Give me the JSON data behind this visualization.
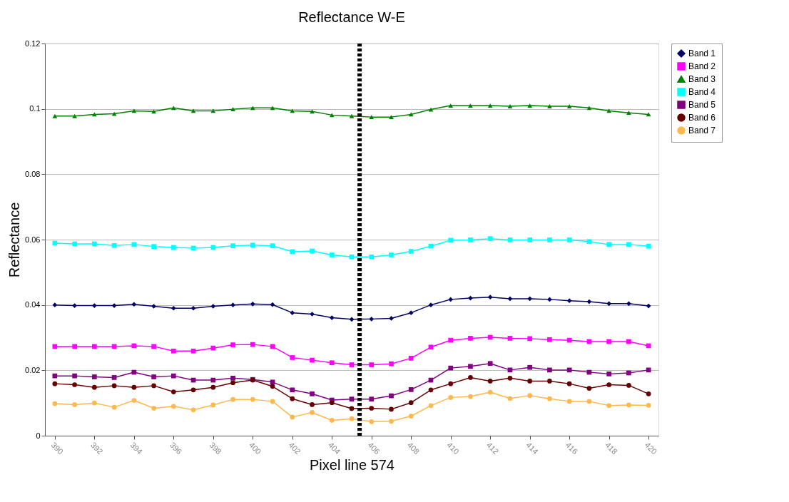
{
  "chart_data": {
    "type": "line",
    "title": "Reflectance W-E",
    "xlabel": "Pixel line 574",
    "ylabel": "Reflectance",
    "x": [
      390,
      391,
      392,
      393,
      394,
      395,
      396,
      397,
      398,
      399,
      400,
      401,
      402,
      403,
      404,
      405,
      406,
      407,
      408,
      409,
      410,
      411,
      412,
      413,
      414,
      415,
      416,
      417,
      418,
      419,
      420
    ],
    "xlim": [
      389.5,
      420.5
    ],
    "xticks": [
      390,
      392,
      394,
      396,
      398,
      400,
      402,
      404,
      406,
      408,
      410,
      412,
      414,
      416,
      418,
      420
    ],
    "ylim": [
      0,
      0.12
    ],
    "yticks": [
      0,
      0.02,
      0.04,
      0.06,
      0.08,
      0.1,
      0.12
    ],
    "grid": "y",
    "legend": "right",
    "series": [
      {
        "name": "Band 1",
        "color": "#000066",
        "marker": "diamond",
        "values": [
          0.04,
          0.0398,
          0.0398,
          0.0398,
          0.0402,
          0.0396,
          0.039,
          0.039,
          0.0396,
          0.04,
          0.0403,
          0.0401,
          0.0376,
          0.0372,
          0.0361,
          0.0356,
          0.0357,
          0.0359,
          0.0376,
          0.04,
          0.0417,
          0.0421,
          0.0424,
          0.0419,
          0.0419,
          0.0417,
          0.0413,
          0.041,
          0.0404,
          0.0404,
          0.0397
        ]
      },
      {
        "name": "Band 2",
        "color": "#ff00ff",
        "marker": "square",
        "values": [
          0.0273,
          0.0273,
          0.0273,
          0.0273,
          0.0275,
          0.0273,
          0.0259,
          0.0259,
          0.0268,
          0.0278,
          0.0279,
          0.0273,
          0.0239,
          0.0231,
          0.0223,
          0.0217,
          0.0217,
          0.022,
          0.0237,
          0.0271,
          0.0292,
          0.0298,
          0.0301,
          0.0298,
          0.0297,
          0.0294,
          0.0292,
          0.0288,
          0.0288,
          0.0288,
          0.0275
        ]
      },
      {
        "name": "Band 3",
        "color": "#008000",
        "marker": "triangle",
        "values": [
          0.0978,
          0.0978,
          0.0983,
          0.0985,
          0.0994,
          0.0992,
          0.1003,
          0.0994,
          0.0994,
          0.0999,
          0.1003,
          0.1003,
          0.0994,
          0.0992,
          0.0981,
          0.0978,
          0.0975,
          0.0975,
          0.0983,
          0.0998,
          0.101,
          0.101,
          0.101,
          0.1008,
          0.101,
          0.1008,
          0.1008,
          0.1003,
          0.0994,
          0.0988,
          0.0983
        ]
      },
      {
        "name": "Band 4",
        "color": "#00ffff",
        "marker": "square",
        "values": [
          0.0589,
          0.0587,
          0.0587,
          0.0582,
          0.0585,
          0.0579,
          0.0576,
          0.0574,
          0.0576,
          0.0581,
          0.0583,
          0.0581,
          0.0563,
          0.0565,
          0.0553,
          0.0547,
          0.0547,
          0.0553,
          0.0564,
          0.058,
          0.0598,
          0.0599,
          0.0603,
          0.0599,
          0.0599,
          0.0599,
          0.0599,
          0.0594,
          0.0585,
          0.0585,
          0.058
        ]
      },
      {
        "name": "Band 5",
        "color": "#800080",
        "marker": "square",
        "values": [
          0.0183,
          0.0183,
          0.018,
          0.0178,
          0.0194,
          0.018,
          0.0183,
          0.017,
          0.017,
          0.0176,
          0.0172,
          0.0164,
          0.014,
          0.0128,
          0.0109,
          0.0112,
          0.0112,
          0.0122,
          0.0141,
          0.017,
          0.0207,
          0.0212,
          0.0221,
          0.0201,
          0.0209,
          0.0201,
          0.0201,
          0.0194,
          0.0189,
          0.0192,
          0.0201
        ]
      },
      {
        "name": "Band 6",
        "color": "#660000",
        "marker": "circle",
        "values": [
          0.0159,
          0.0156,
          0.0148,
          0.0153,
          0.0148,
          0.0153,
          0.0134,
          0.014,
          0.0148,
          0.0162,
          0.017,
          0.0151,
          0.0113,
          0.0095,
          0.0101,
          0.0083,
          0.0084,
          0.0081,
          0.0101,
          0.014,
          0.0159,
          0.0178,
          0.0167,
          0.0176,
          0.0167,
          0.0167,
          0.0159,
          0.0145,
          0.0156,
          0.0154,
          0.0128
        ]
      },
      {
        "name": "Band 7",
        "color": "#ffb84d",
        "marker": "circle",
        "values": [
          0.0098,
          0.0095,
          0.01,
          0.0087,
          0.0108,
          0.0084,
          0.009,
          0.0079,
          0.0094,
          0.0111,
          0.0111,
          0.0105,
          0.0057,
          0.0071,
          0.0047,
          0.0052,
          0.0043,
          0.0044,
          0.006,
          0.0092,
          0.0117,
          0.012,
          0.0133,
          0.0114,
          0.0123,
          0.0113,
          0.0105,
          0.0105,
          0.0092,
          0.0094,
          0.0093
        ]
      }
    ],
    "ref_lines": [
      {
        "axis": "x",
        "value": 405.4,
        "color": "#000000",
        "line_style": "dashed"
      }
    ]
  }
}
